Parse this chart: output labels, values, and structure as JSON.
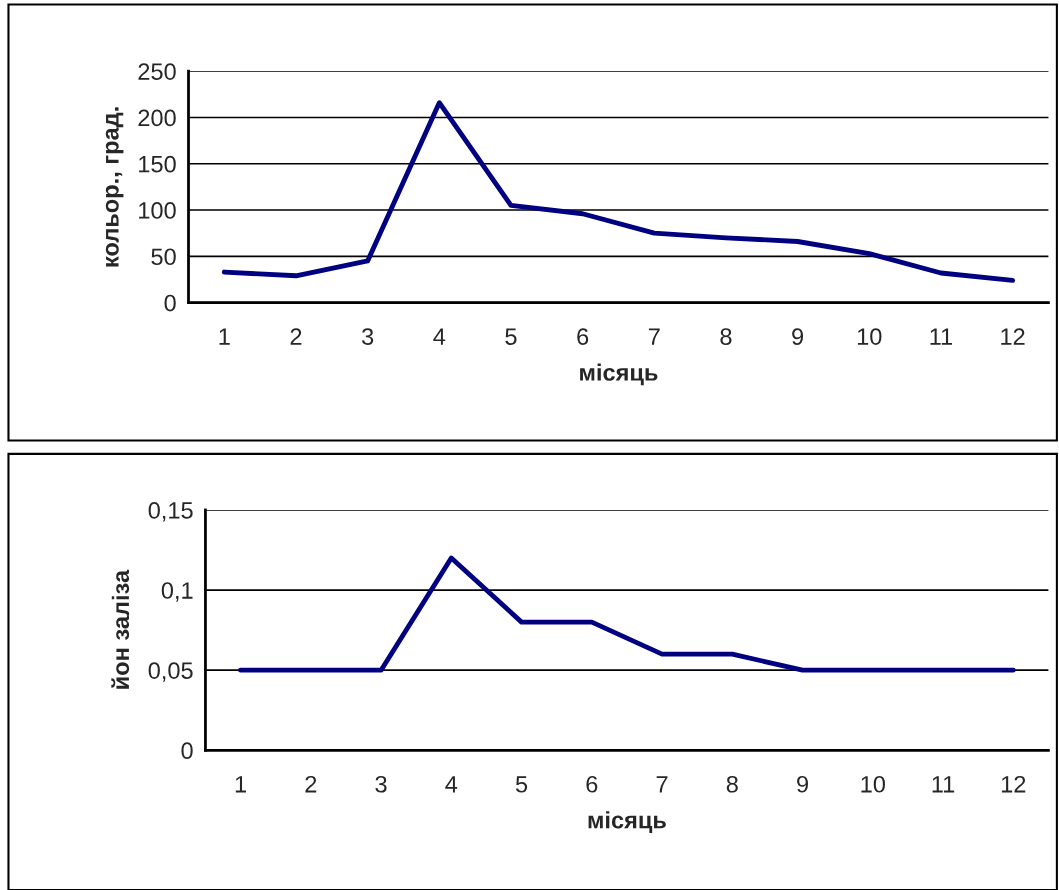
{
  "chart_data": [
    {
      "type": "line",
      "xlabel": "місяць",
      "ylabel": "кольор., град.",
      "categories": [
        "1",
        "2",
        "3",
        "4",
        "5",
        "6",
        "7",
        "8",
        "9",
        "10",
        "11",
        "12"
      ],
      "series": [
        {
          "color": "#000080",
          "values": [
            33,
            29,
            45,
            216,
            105,
            96,
            75,
            70,
            66,
            53,
            32,
            24
          ]
        }
      ],
      "ylim": [
        0,
        250
      ],
      "yticks": [
        0,
        50,
        100,
        150,
        200,
        250
      ],
      "grid": "y",
      "line_style": "solid"
    },
    {
      "type": "line",
      "xlabel": "місяць",
      "ylabel": "йон заліза",
      "categories": [
        "1",
        "2",
        "3",
        "4",
        "5",
        "6",
        "7",
        "8",
        "9",
        "10",
        "11",
        "12"
      ],
      "series": [
        {
          "color": "#000080",
          "values": [
            0.05,
            0.05,
            0.05,
            0.12,
            0.08,
            0.08,
            0.06,
            0.06,
            0.05,
            0.05,
            0.05,
            0.05
          ]
        }
      ],
      "ylim": [
        0,
        0.15
      ],
      "yticks": [
        0,
        {
          "value": 0.05,
          "label": "0,05"
        },
        {
          "value": 0.1,
          "label": "0,1"
        },
        {
          "value": 0.15,
          "label": "0,15"
        }
      ],
      "grid": "y",
      "line_style": "solid"
    }
  ]
}
